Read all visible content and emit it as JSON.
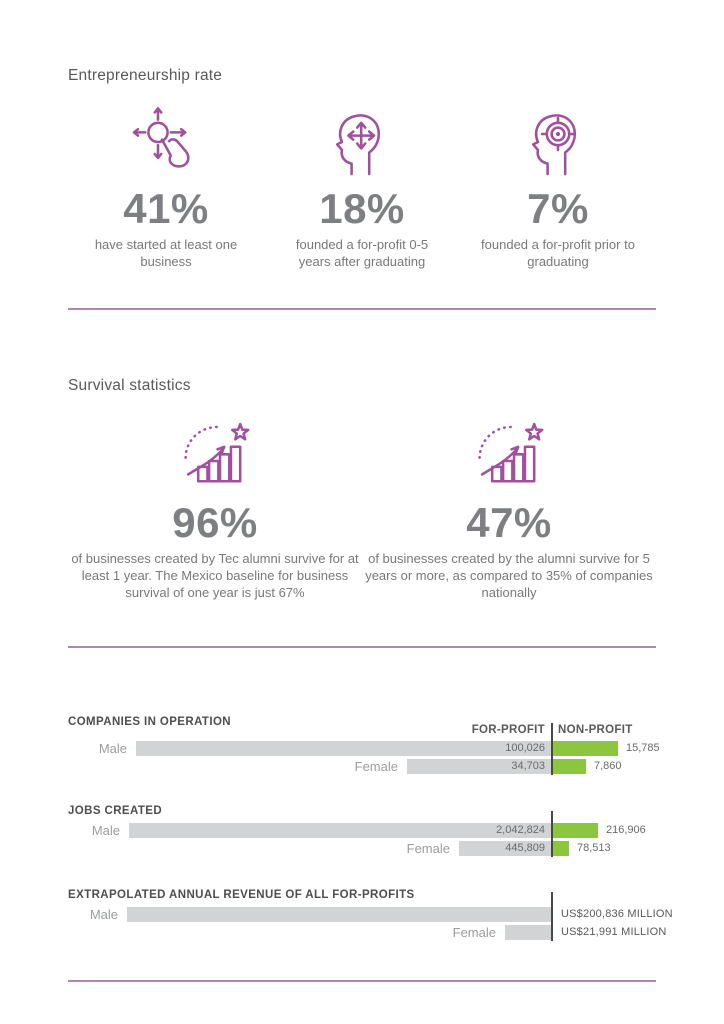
{
  "theme": {
    "accent": "#a0519e",
    "divider": "#ad87b0",
    "heading": "#58595b",
    "chart_title": "#4d4e50",
    "stat_number": "#7d7f82",
    "body": "#77787b",
    "bar_gray": "#d2d3d4",
    "bar_green": "#8cc63f",
    "axis": "#47484a",
    "cat_label": "#9b9da0",
    "value_text": "#6a6b6e"
  },
  "sections": {
    "entrepreneurship": {
      "title": "Entrepreneurship rate",
      "stats": [
        {
          "icon": "tap-choice-icon",
          "value": "41%",
          "caption": "have started at least one business"
        },
        {
          "icon": "head-arrows-icon",
          "value": "18%",
          "caption": "founded a for-profit 0-5 years after graduating"
        },
        {
          "icon": "head-target-icon",
          "value": "7%",
          "caption": "founded a for-profit prior to graduating"
        }
      ]
    },
    "survival": {
      "title": "Survival statistics",
      "stats": [
        {
          "icon": "growth-star-icon",
          "value": "96%",
          "caption": "of businesses created by Tec alumni survive for at least 1 year. The Mexico baseline for business survival of one year is just 67%"
        },
        {
          "icon": "growth-star-icon",
          "value": "47%",
          "caption": "of businesses created by the alumni survive for 5 years or more, as compared to 35% of companies nationally"
        }
      ]
    }
  },
  "chart_data": [
    {
      "type": "bar",
      "orientation": "horizontal",
      "title": "COMPANIES IN OPERATION",
      "column_headers": [
        "FOR-PROFIT",
        "NON-PROFIT"
      ],
      "categories": [
        "Male",
        "Female"
      ],
      "series": [
        {
          "name": "FOR-PROFIT",
          "color": "#d2d3d4",
          "values": [
            100026,
            34703
          ],
          "labels": [
            "100,026",
            "34,703"
          ]
        },
        {
          "name": "NON-PROFIT",
          "color": "#8cc63f",
          "values": [
            15785,
            7860
          ],
          "labels": [
            "15,785",
            "7,860"
          ]
        }
      ],
      "layout": {
        "value_labels": "for-profit inside bar right-aligned at shared axis, non-profit right of green bar",
        "legend": "column headers above bars"
      }
    },
    {
      "type": "bar",
      "orientation": "horizontal",
      "title": "JOBS CREATED",
      "categories": [
        "Male",
        "Female"
      ],
      "series": [
        {
          "name": "FOR-PROFIT",
          "color": "#d2d3d4",
          "values": [
            2042824,
            445809
          ],
          "labels": [
            "2,042,824",
            "445,809"
          ]
        },
        {
          "name": "NON-PROFIT",
          "color": "#8cc63f",
          "values": [
            216906,
            78513
          ],
          "labels": [
            "216,906",
            "78,513"
          ]
        }
      ],
      "layout": {
        "value_labels": "same shared-axis layout as companies chart"
      }
    },
    {
      "type": "bar",
      "orientation": "horizontal",
      "title": "EXTRAPOLATED ANNUAL REVENUE OF ALL FOR-PROFITS",
      "categories": [
        "Male",
        "Female"
      ],
      "unit": "US$ million",
      "series": [
        {
          "name": "FOR-PROFIT",
          "color": "#d2d3d4",
          "values": [
            200836,
            21991
          ],
          "labels": [
            "US$200,836 MILLION",
            "US$21,991 MILLION"
          ]
        }
      ],
      "layout": {
        "value_labels": "right of shared axis line"
      }
    }
  ]
}
